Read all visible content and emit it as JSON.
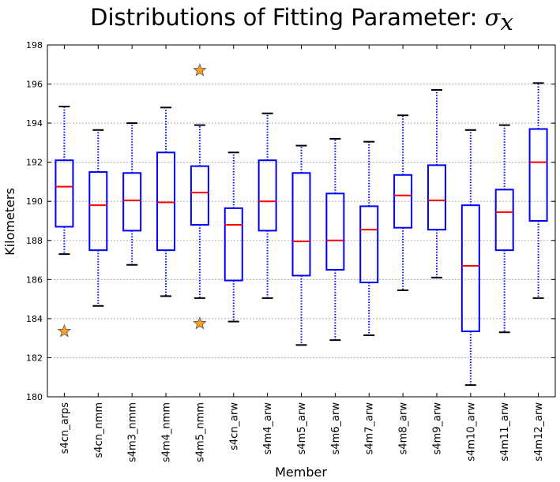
{
  "chart_data": {
    "type": "box",
    "title": "Distributions of Fitting Parameter: ",
    "title_symbol": "σ",
    "title_subscript": "x",
    "xlabel": "Member",
    "ylabel": "Kilometers",
    "ylim": [
      180,
      198
    ],
    "yticks": [
      180,
      182,
      184,
      186,
      188,
      190,
      192,
      194,
      196,
      198
    ],
    "grid": "horizontal dotted",
    "colors": {
      "box": "#0000ff",
      "median": "#ff0000",
      "whisker": "#0000ff",
      "cap": "#000000",
      "outlier_fill": "#ff9f1a",
      "outlier_edge": "#555555",
      "grid": "#b0b0b0"
    },
    "categories": [
      "s4cn_arps",
      "s4cn_nmm",
      "s4m3_nmm",
      "s4m4_nmm",
      "s4m5_nmm",
      "s4cn_arw",
      "s4m4_arw",
      "s4m5_arw",
      "s4m6_arw",
      "s4m7_arw",
      "s4m8_arw",
      "s4m9_arw",
      "s4m10_arw",
      "s4m11_arw",
      "s4m12_arw"
    ],
    "boxes": [
      {
        "whisker_low": 187.3,
        "q1": 188.7,
        "median": 190.75,
        "q3": 192.1,
        "whisker_high": 194.85,
        "outliers": [
          183.35
        ]
      },
      {
        "whisker_low": 184.65,
        "q1": 187.5,
        "median": 189.8,
        "q3": 191.5,
        "whisker_high": 193.65,
        "outliers": []
      },
      {
        "whisker_low": 186.75,
        "q1": 188.5,
        "median": 190.05,
        "q3": 191.45,
        "whisker_high": 194.0,
        "outliers": []
      },
      {
        "whisker_low": 185.15,
        "q1": 187.5,
        "median": 189.95,
        "q3": 192.5,
        "whisker_high": 194.8,
        "outliers": []
      },
      {
        "whisker_low": 185.05,
        "q1": 188.8,
        "median": 190.45,
        "q3": 191.8,
        "whisker_high": 193.9,
        "outliers": [
          196.7,
          183.75
        ]
      },
      {
        "whisker_low": 183.85,
        "q1": 185.95,
        "median": 188.8,
        "q3": 189.65,
        "whisker_high": 192.5,
        "outliers": []
      },
      {
        "whisker_low": 185.05,
        "q1": 188.5,
        "median": 190.0,
        "q3": 192.1,
        "whisker_high": 194.5,
        "outliers": []
      },
      {
        "whisker_low": 182.65,
        "q1": 186.2,
        "median": 187.95,
        "q3": 191.45,
        "whisker_high": 192.85,
        "outliers": []
      },
      {
        "whisker_low": 182.9,
        "q1": 186.5,
        "median": 188.0,
        "q3": 190.4,
        "whisker_high": 193.2,
        "outliers": []
      },
      {
        "whisker_low": 183.15,
        "q1": 185.85,
        "median": 188.55,
        "q3": 189.75,
        "whisker_high": 193.05,
        "outliers": []
      },
      {
        "whisker_low": 185.45,
        "q1": 188.65,
        "median": 190.3,
        "q3": 191.35,
        "whisker_high": 194.4,
        "outliers": []
      },
      {
        "whisker_low": 186.1,
        "q1": 188.55,
        "median": 190.05,
        "q3": 191.85,
        "whisker_high": 195.7,
        "outliers": []
      },
      {
        "whisker_low": 180.6,
        "q1": 183.35,
        "median": 186.7,
        "q3": 189.8,
        "whisker_high": 193.65,
        "outliers": []
      },
      {
        "whisker_low": 183.3,
        "q1": 187.5,
        "median": 189.45,
        "q3": 190.6,
        "whisker_high": 193.9,
        "outliers": []
      },
      {
        "whisker_low": 185.05,
        "q1": 189.0,
        "median": 192.0,
        "q3": 193.7,
        "whisker_high": 196.05,
        "outliers": []
      }
    ]
  }
}
